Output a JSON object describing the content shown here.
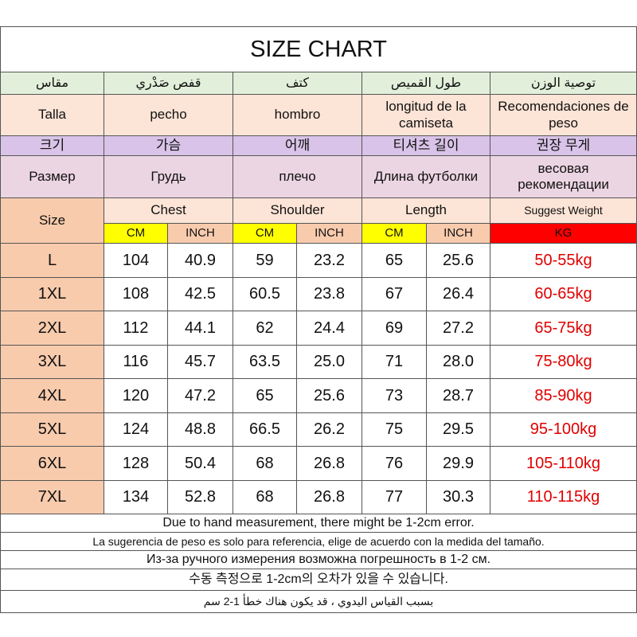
{
  "title": "SIZE CHART",
  "translations": [
    [
      "مقاس",
      "قفص صَدْري",
      "كتف",
      "طول القميص",
      "توصية الوزن"
    ],
    [
      "Talla",
      "pecho",
      "hombro",
      "longitud de la camiseta",
      "Recomendaciones de peso"
    ],
    [
      "크기",
      "가슴",
      "어깨",
      "티셔츠 길이",
      "권장 무게"
    ],
    [
      "Размер",
      "Грудь",
      "плечо",
      "Длина футболки",
      "весовая рекомендации"
    ]
  ],
  "header": {
    "size": "Size",
    "groups": [
      "Chest",
      "Shoulder",
      "Length",
      "Suggest Weight"
    ],
    "units": [
      "CM",
      "INCH",
      "CM",
      "INCH",
      "CM",
      "INCH",
      "KG"
    ]
  },
  "rows": [
    [
      "L",
      "104",
      "40.9",
      "59",
      "23.2",
      "65",
      "25.6",
      "50-55kg"
    ],
    [
      "1XL",
      "108",
      "42.5",
      "60.5",
      "23.8",
      "67",
      "26.4",
      "60-65kg"
    ],
    [
      "2XL",
      "112",
      "44.1",
      "62",
      "24.4",
      "69",
      "27.2",
      "65-75kg"
    ],
    [
      "3XL",
      "116",
      "45.7",
      "63.5",
      "25.0",
      "71",
      "28.0",
      "75-80kg"
    ],
    [
      "4XL",
      "120",
      "47.2",
      "65",
      "25.6",
      "73",
      "28.7",
      "85-90kg"
    ],
    [
      "5XL",
      "124",
      "48.8",
      "66.5",
      "26.2",
      "75",
      "29.5",
      "95-100kg"
    ],
    [
      "6XL",
      "128",
      "50.4",
      "68",
      "26.8",
      "76",
      "29.9",
      "105-110kg"
    ],
    [
      "7XL",
      "134",
      "52.8",
      "68",
      "26.8",
      "77",
      "30.3",
      "110-115kg"
    ]
  ],
  "notes": [
    "Due to hand measurement, there might be 1-2cm error.",
    "La sugerencia de peso es solo para referencia, elige de acuerdo con la medida del tamaño.",
    "Из-за ручного измерения возможна погрешность в 1-2 см.",
    "수동 측정으로 1-2cm의 오차가 있을 수 있습니다.",
    "بسبب القياس اليدوي ، قد يكون هناك خطأ 1-2 سم"
  ]
}
